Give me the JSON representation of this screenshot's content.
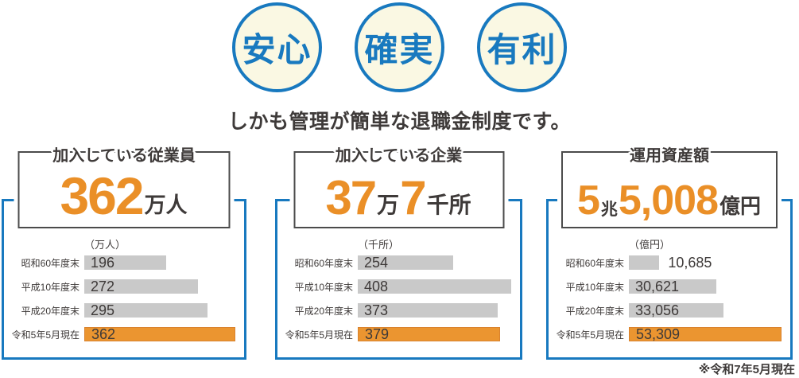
{
  "badges": [
    {
      "label": "安心"
    },
    {
      "label": "確実"
    },
    {
      "label": "有利"
    }
  ],
  "subtitle": "しかも管理が簡単な退職金制度です。",
  "footnote": "※令和7年5月現在",
  "colors": {
    "accent_blue": "#1879BF",
    "accent_orange": "#EB9530",
    "orange_text": "#EA8F27",
    "bar_gray": "#C9C9C9",
    "badge_cream": "#FAF8E3",
    "text_dark": "#3E3A39",
    "header_box_border": "#4B4B4B"
  },
  "panels": [
    {
      "title": "加入している従業員",
      "headline": [
        {
          "text": "362",
          "kind": "num"
        },
        {
          "text": "万人",
          "kind": "sfx"
        }
      ],
      "unit_label": "（万人）",
      "rows": [
        {
          "label": "昭和60年度末",
          "value_text": "196",
          "value": 196,
          "highlight": false,
          "value_outside": false
        },
        {
          "label": "平成10年度末",
          "value_text": "272",
          "value": 272,
          "highlight": false,
          "value_outside": false
        },
        {
          "label": "平成20年度末",
          "value_text": "295",
          "value": 295,
          "highlight": false,
          "value_outside": false
        },
        {
          "label": "令和5年5月現在",
          "value_text": "362",
          "value": 362,
          "highlight": true,
          "value_outside": false
        }
      ]
    },
    {
      "title": "加入している企業",
      "headline": [
        {
          "text": "37",
          "kind": "num"
        },
        {
          "text": "万",
          "kind": "sfx"
        },
        {
          "text": "7",
          "kind": "num"
        },
        {
          "text": "千所",
          "kind": "sfx"
        }
      ],
      "unit_label": "（千所）",
      "rows": [
        {
          "label": "昭和60年度末",
          "value_text": "254",
          "value": 254,
          "highlight": false,
          "value_outside": false
        },
        {
          "label": "平成10年度末",
          "value_text": "408",
          "value": 408,
          "highlight": false,
          "value_outside": false
        },
        {
          "label": "平成20年度末",
          "value_text": "373",
          "value": 373,
          "highlight": false,
          "value_outside": false
        },
        {
          "label": "令和5年5月現在",
          "value_text": "379",
          "value": 379,
          "highlight": true,
          "value_outside": false
        }
      ]
    },
    {
      "title": "運用資産額",
      "headline": [
        {
          "text": "5",
          "kind": "num"
        },
        {
          "text": "兆",
          "kind": "sfx-first"
        },
        {
          "text": "5,008",
          "kind": "num"
        },
        {
          "text": "億円",
          "kind": "sfx"
        }
      ],
      "unit_label": "（億円）",
      "rows": [
        {
          "label": "昭和60年度末",
          "value_text": "10,685",
          "value": 10685,
          "highlight": false,
          "value_outside": true
        },
        {
          "label": "平成10年度末",
          "value_text": "30,621",
          "value": 30621,
          "highlight": false,
          "value_outside": false
        },
        {
          "label": "平成20年度末",
          "value_text": "33,056",
          "value": 33056,
          "highlight": false,
          "value_outside": false
        },
        {
          "label": "令和5年5月現在",
          "value_text": "53,309",
          "value": 53309,
          "highlight": true,
          "value_outside": false
        }
      ]
    }
  ],
  "chart_data": [
    {
      "type": "bar",
      "orientation": "horizontal",
      "title": "加入している従業員",
      "headline": "362万人",
      "unit": "万人",
      "categories": [
        "昭和60年度末",
        "平成10年度末",
        "平成20年度末",
        "令和5年5月現在"
      ],
      "values": [
        196,
        272,
        295,
        362
      ],
      "highlight_category": "令和5年5月現在",
      "bar_colors": [
        "#C9C9C9",
        "#C9C9C9",
        "#C9C9C9",
        "#EB9530"
      ],
      "xlim": [
        0,
        362
      ],
      "grid": false,
      "legend": "none",
      "value_labels": "inside-left"
    },
    {
      "type": "bar",
      "orientation": "horizontal",
      "title": "加入している企業",
      "headline": "37万7千所",
      "unit": "千所",
      "categories": [
        "昭和60年度末",
        "平成10年度末",
        "平成20年度末",
        "令和5年5月現在"
      ],
      "values": [
        254,
        408,
        373,
        379
      ],
      "highlight_category": "令和5年5月現在",
      "bar_colors": [
        "#C9C9C9",
        "#C9C9C9",
        "#C9C9C9",
        "#EB9530"
      ],
      "xlim": [
        0,
        408
      ],
      "grid": false,
      "legend": "none",
      "value_labels": "inside-left"
    },
    {
      "type": "bar",
      "orientation": "horizontal",
      "title": "運用資産額",
      "headline": "5兆5,008億円",
      "unit": "億円",
      "categories": [
        "昭和60年度末",
        "平成10年度末",
        "平成20年度末",
        "令和5年5月現在"
      ],
      "values": [
        10685,
        30621,
        33056,
        53309
      ],
      "highlight_category": "令和5年5月現在",
      "bar_colors": [
        "#C9C9C9",
        "#C9C9C9",
        "#C9C9C9",
        "#EB9530"
      ],
      "xlim": [
        0,
        53309
      ],
      "grid": false,
      "legend": "none",
      "value_labels": "inside-left (first value outside)"
    }
  ]
}
